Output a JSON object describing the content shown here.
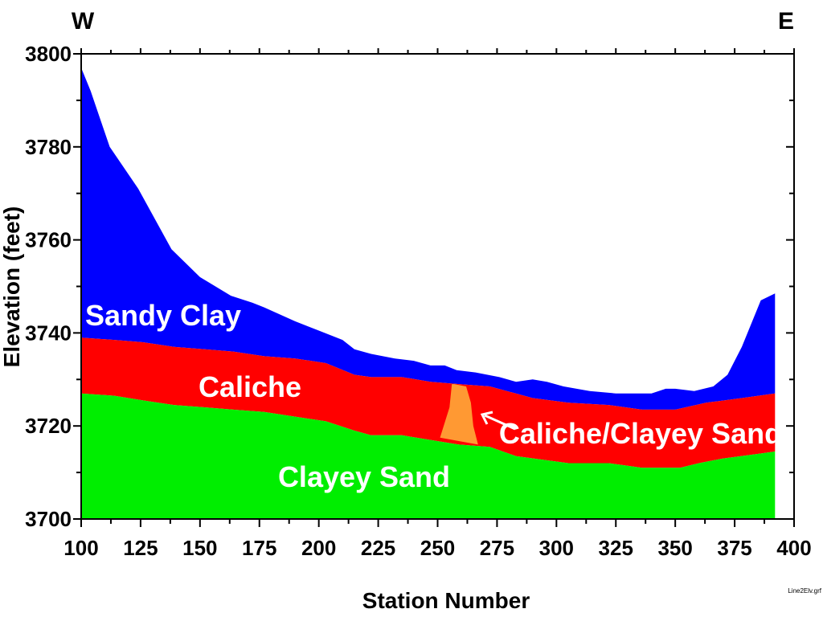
{
  "chart_data": {
    "type": "area",
    "xlabel": "Station Number",
    "ylabel": "Elevation (feet)",
    "xlim": [
      100,
      400
    ],
    "ylim": [
      3700,
      3800
    ],
    "x_ticks": [
      "100",
      "125",
      "150",
      "175",
      "200",
      "225",
      "250",
      "275",
      "300",
      "325",
      "350",
      "375",
      "400"
    ],
    "y_ticks": [
      "3700",
      "3720",
      "3740",
      "3760",
      "3780",
      "3800"
    ],
    "direction_labels": {
      "west": "W",
      "east": "E"
    },
    "file_label": "Line2Elv.grf",
    "colors": {
      "sandy_clay": "#0000ff",
      "caliche": "#ff0000",
      "clayey_sand": "#00ee00",
      "caliche_clayey_sand": "#ff9933"
    },
    "layer_labels": {
      "sandy_clay": "Sandy Clay",
      "caliche": "Caliche",
      "clayey_sand": "Clayey Sand",
      "caliche_clayey_sand": "Caliche/Clayey Sand"
    },
    "surface": {
      "x": [
        100,
        104,
        112,
        124,
        138,
        150,
        163,
        172,
        177,
        190,
        200,
        210,
        215,
        222,
        232,
        240,
        247,
        253,
        258,
        266,
        276,
        283,
        290,
        296,
        303,
        314,
        325,
        336,
        340,
        346,
        350,
        358,
        366,
        372,
        378,
        386,
        392
      ],
      "y": [
        3797,
        3792,
        3780,
        3771,
        3758,
        3752,
        3748,
        3746.5,
        3745.5,
        3742.5,
        3740.5,
        3738.5,
        3736.5,
        3735.5,
        3734.5,
        3734,
        3733,
        3733,
        3732,
        3731.5,
        3730.5,
        3729.5,
        3730,
        3729.5,
        3728.5,
        3727.5,
        3727,
        3727,
        3727,
        3728,
        3728,
        3727.5,
        3728.5,
        3731,
        3737,
        3747,
        3748.5
      ]
    },
    "caliche_top": {
      "x": [
        100,
        114,
        126,
        139,
        152,
        164,
        177,
        190,
        203,
        215,
        222,
        235,
        247,
        259,
        272,
        290,
        305,
        322,
        336,
        350,
        363,
        378,
        392
      ],
      "y": [
        3739,
        3738.5,
        3738,
        3737,
        3736.5,
        3736,
        3735,
        3734.5,
        3733.5,
        3731,
        3730.5,
        3730.5,
        3729.5,
        3729,
        3728.5,
        3726,
        3725,
        3724.5,
        3723.5,
        3723.5,
        3725,
        3726,
        3727
      ]
    },
    "caliche_bottom": {
      "x": [
        100,
        114,
        126,
        139,
        152,
        164,
        177,
        190,
        203,
        215,
        222,
        235,
        247,
        259,
        272,
        283,
        305,
        322,
        336,
        345,
        352,
        360,
        370,
        385,
        392
      ],
      "y": [
        3727,
        3726.5,
        3725.5,
        3724.5,
        3724,
        3723.5,
        3723,
        3722,
        3721,
        3719,
        3718,
        3718,
        3717,
        3716,
        3715.5,
        3713.5,
        3712,
        3712,
        3711,
        3711,
        3711,
        3712,
        3713,
        3714,
        3714.5
      ]
    },
    "lens": {
      "x": [
        251,
        255,
        256,
        257,
        262,
        264,
        265,
        267,
        251
      ],
      "y": [
        3717.5,
        3724,
        3729,
        3729,
        3728.5,
        3725,
        3720,
        3716,
        3717.5
      ]
    }
  }
}
